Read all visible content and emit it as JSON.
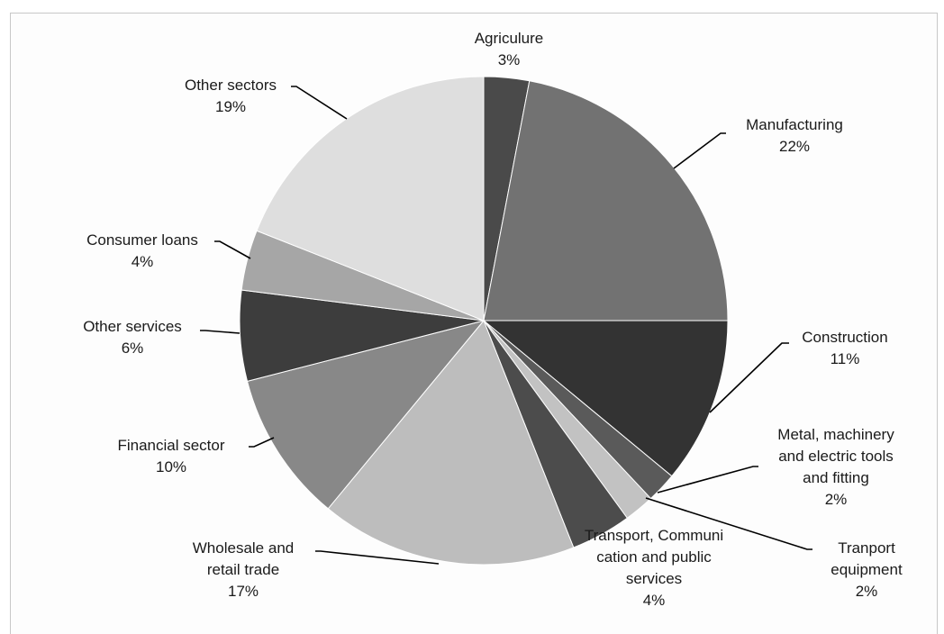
{
  "chart_data": {
    "type": "pie",
    "title": "",
    "slices": [
      {
        "name": "Agriculure",
        "value": 3,
        "label": "3%",
        "color": "#4a4a4a"
      },
      {
        "name": "Manufacturing",
        "value": 22,
        "label": "22%",
        "color": "#727272"
      },
      {
        "name": "Construction",
        "value": 11,
        "label": "11%",
        "color": "#333333"
      },
      {
        "name": "Metal, machinery and electric tools and fitting",
        "value": 2,
        "label": "2%",
        "color": "#5a5a5a"
      },
      {
        "name": "Tranport equipment",
        "value": 2,
        "label": "2%",
        "color": "#c2c2c2"
      },
      {
        "name": "Transport, Communication and public services",
        "value": 4,
        "label": "4%",
        "color": "#4c4c4c"
      },
      {
        "name": "Wholesale and retail trade",
        "value": 17,
        "label": "17%",
        "color": "#bdbdbd"
      },
      {
        "name": "Financial sector",
        "value": 10,
        "label": "10%",
        "color": "#888888"
      },
      {
        "name": "Other services",
        "value": 6,
        "label": "6%",
        "color": "#3d3d3d"
      },
      {
        "name": "Consumer loans",
        "value": 4,
        "label": "4%",
        "color": "#a6a6a6"
      },
      {
        "name": "Other sectors",
        "value": 19,
        "label": "19%",
        "color": "#dedede"
      }
    ],
    "label_lines": [
      [
        "Agriculure"
      ],
      [
        "Manufacturing"
      ],
      [
        "Construction"
      ],
      [
        "Metal, machinery",
        "and electric tools",
        "and fitting"
      ],
      [
        "Tranport",
        "equipment"
      ],
      [
        "Transport, Communi",
        "cation and public",
        "services"
      ],
      [
        "Wholesale and",
        "retail trade"
      ],
      [
        "Financial sector"
      ],
      [
        "Other services"
      ],
      [
        "Consumer loans"
      ],
      [
        "Other sectors"
      ]
    ],
    "legend": "none",
    "start_angle_deg": 0,
    "direction": "clockwise"
  }
}
